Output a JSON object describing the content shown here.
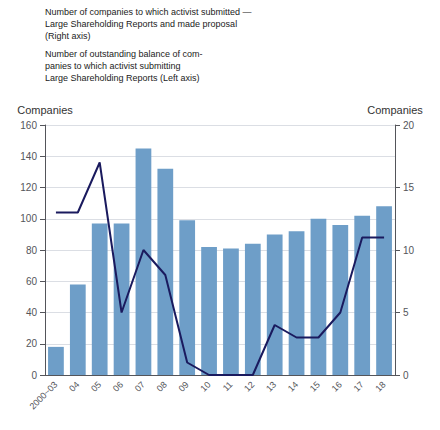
{
  "chart_data": {
    "type": "bar",
    "categories": [
      "2000~03",
      "04",
      "05",
      "06",
      "07",
      "08",
      "09",
      "10",
      "11",
      "12",
      "13",
      "14",
      "15",
      "16",
      "17",
      "18"
    ],
    "series": [
      {
        "type": "bar",
        "color": "#6e9ec8",
        "values": [
          18,
          58,
          97,
          97,
          145,
          132,
          99,
          82,
          81,
          84,
          90,
          92,
          100,
          96,
          102,
          108
        ]
      },
      {
        "type": "line",
        "axis": "y2",
        "color": "#1a1a5e",
        "values": [
          13,
          13,
          17,
          5,
          10,
          8,
          1,
          0,
          0,
          0,
          4,
          3,
          3,
          5,
          11,
          11
        ]
      }
    ],
    "ylabel": "Companies",
    "y2label": "Companies",
    "ylim": [
      0,
      160
    ],
    "yticks": [
      0,
      20,
      40,
      60,
      80,
      100,
      120,
      140,
      160
    ],
    "y2lim": [
      0,
      20
    ],
    "y2ticks": [
      0,
      5,
      10,
      15,
      20
    ],
    "grid": true,
    "annotations": [
      "Number of companies to which activist submitted —\nLarge Shareholding Reports and made proposal\n(Right axis)",
      "Number of outstanding balance of com-\npanies to which activist submitting\nLarge Shareholding Reports (Left axis)"
    ]
  }
}
